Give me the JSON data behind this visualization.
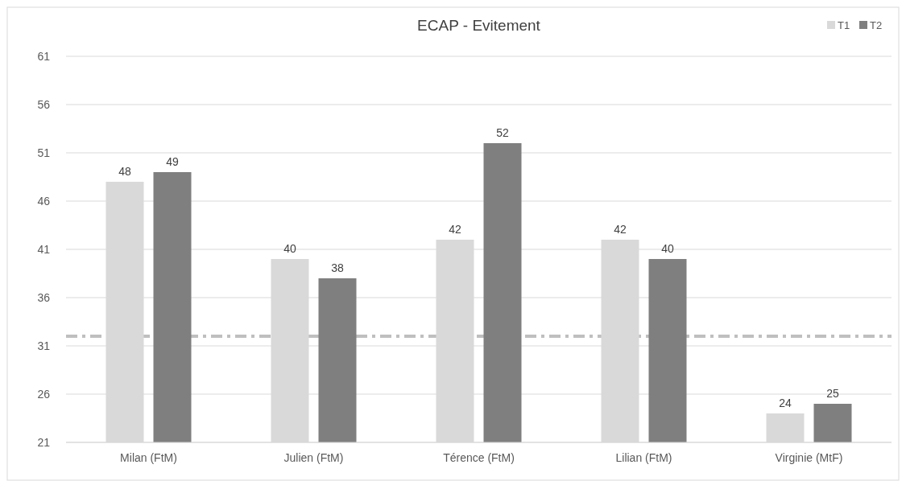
{
  "chart_data": {
    "type": "bar",
    "title": "ECAP - Evitement",
    "categories": [
      "Milan (FtM)",
      "Julien (FtM)",
      "Térence (FtM)",
      "Lilian (FtM)",
      "Virginie (MtF)"
    ],
    "series": [
      {
        "name": "T1",
        "color": "#d9d9d9",
        "values": [
          48,
          40,
          42,
          42,
          24
        ]
      },
      {
        "name": "T2",
        "color": "#7f7f7f",
        "values": [
          49,
          38,
          52,
          40,
          25
        ]
      }
    ],
    "ylim": [
      21,
      61
    ],
    "yticks": [
      21,
      26,
      31,
      36,
      41,
      46,
      51,
      56,
      61
    ],
    "grid": "y",
    "legend": "top right",
    "data_labels": true,
    "ref_lines": [
      {
        "axis": "y",
        "value": 32,
        "color": "#bfbfbf",
        "line_style": "dashdot"
      }
    ]
  }
}
